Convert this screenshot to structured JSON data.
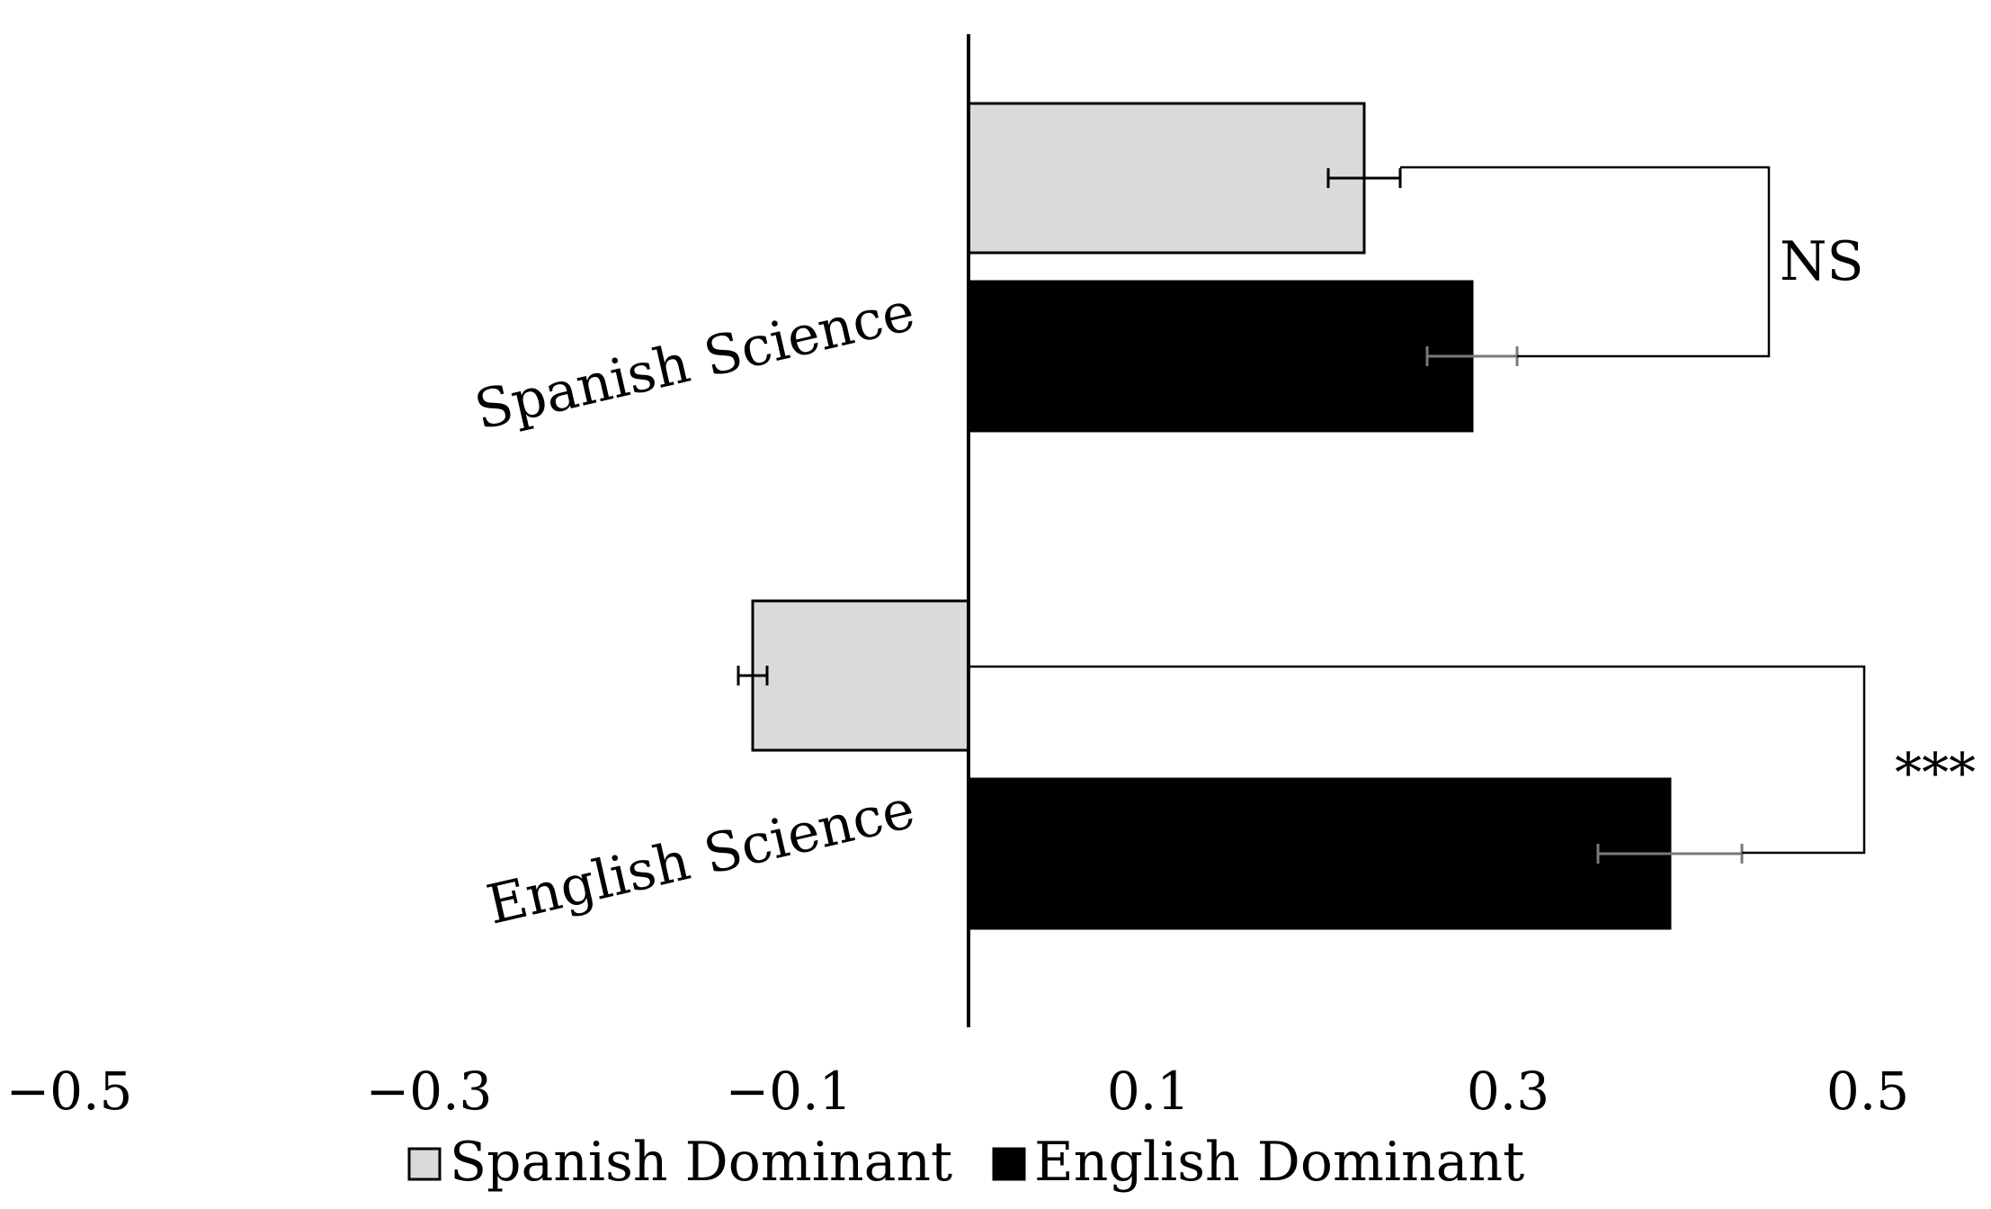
{
  "chart_data": {
    "type": "bar",
    "orientation": "horizontal",
    "categories": [
      "Spanish Science",
      "English Science"
    ],
    "series": [
      {
        "name": "Spanish Dominant",
        "color": "#dcdad8",
        "values": [
          0.22,
          -0.12
        ],
        "error_bars": [
          0.02,
          0.008
        ]
      },
      {
        "name": "English Dominant",
        "color": "#000000",
        "values": [
          0.28,
          0.39
        ],
        "error_bars": [
          0.025,
          0.04
        ]
      }
    ],
    "xlim": [
      -0.5,
      0.5
    ],
    "xticks": [
      -0.5,
      -0.3,
      -0.1,
      0.1,
      0.3,
      0.5
    ],
    "xtick_labels": [
      "−0.5",
      "−0.3",
      "−0.1",
      "0.1",
      "0.3",
      "0.5"
    ],
    "significance": [
      {
        "category": "Spanish Science",
        "label": "NS",
        "bracket_x": 0.445
      },
      {
        "category": "English Science",
        "label": "***",
        "bracket_x": 0.498
      }
    ],
    "legend_position": "bottom",
    "grid": false,
    "title": "",
    "xlabel": "",
    "ylabel": ""
  }
}
